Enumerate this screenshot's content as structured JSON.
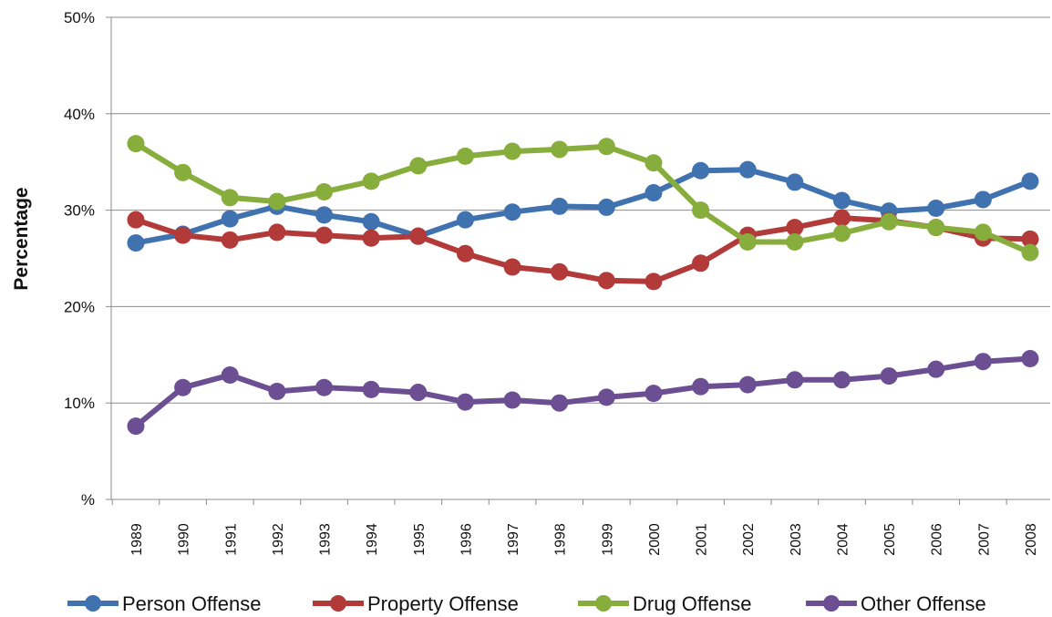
{
  "chart_data": {
    "type": "line",
    "ylabel": "Percentage",
    "xlabel": "",
    "title": "",
    "ylim": [
      0,
      50
    ],
    "y_ticks": [
      0,
      10,
      20,
      30,
      40,
      50
    ],
    "y_tick_labels": [
      "%",
      "10%",
      "20%",
      "30%",
      "40%",
      "50%"
    ],
    "grid": "horizontal",
    "legend_position": "bottom",
    "categories": [
      "1989",
      "1990",
      "1991",
      "1992",
      "1993",
      "1994",
      "1995",
      "1996",
      "1997",
      "1998",
      "1999",
      "2000",
      "2001",
      "2002",
      "2003",
      "2004",
      "2005",
      "2006",
      "2007",
      "2008"
    ],
    "series": [
      {
        "name": "Person Offense",
        "color": "#3f72ae",
        "values": [
          26.6,
          27.5,
          29.1,
          30.4,
          29.5,
          28.8,
          27.3,
          29.0,
          29.8,
          30.4,
          30.3,
          31.8,
          34.1,
          34.2,
          32.9,
          31.0,
          29.9,
          30.2,
          31.1,
          33.0
        ]
      },
      {
        "name": "Property Offense",
        "color": "#b23b3a",
        "values": [
          29.0,
          27.4,
          26.9,
          27.7,
          27.4,
          27.1,
          27.3,
          25.5,
          24.1,
          23.6,
          22.7,
          22.6,
          24.5,
          27.4,
          28.2,
          29.2,
          28.9,
          28.2,
          27.1,
          27.0
        ]
      },
      {
        "name": "Drug Offense",
        "color": "#87ad3d",
        "values": [
          36.9,
          33.9,
          31.3,
          30.9,
          31.9,
          33.0,
          34.6,
          35.6,
          36.1,
          36.3,
          36.6,
          34.9,
          30.0,
          26.7,
          26.7,
          27.6,
          28.8,
          28.2,
          27.7,
          25.6
        ]
      },
      {
        "name": "Other Offense",
        "color": "#6c4f93",
        "values": [
          7.6,
          11.6,
          12.9,
          11.2,
          11.6,
          11.4,
          11.1,
          10.1,
          10.3,
          10.0,
          10.6,
          11.0,
          11.7,
          11.9,
          12.4,
          12.4,
          12.8,
          13.5,
          14.3,
          14.6
        ]
      }
    ]
  }
}
